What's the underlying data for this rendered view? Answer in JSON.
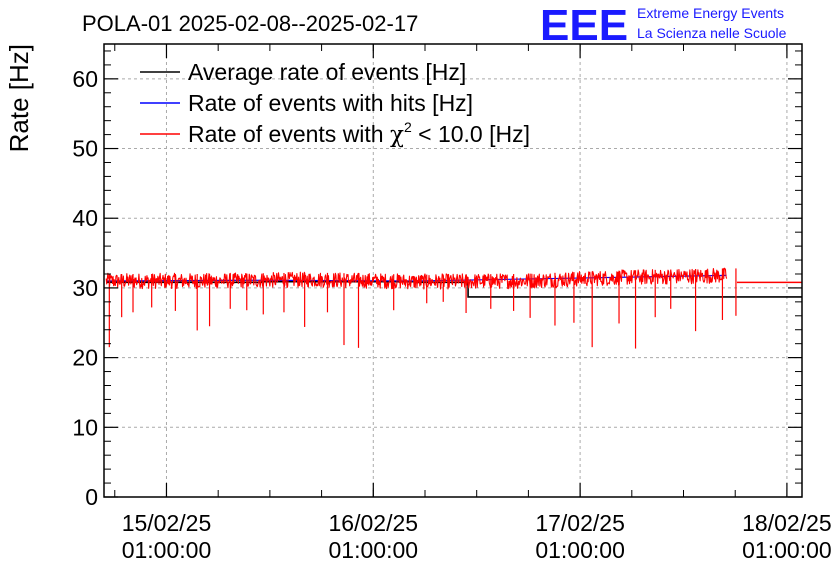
{
  "chart_data": {
    "type": "line",
    "title": "POLA-01 2025-02-08--2025-02-17",
    "ylabel": "Rate [Hz]",
    "xlabel": "",
    "ylim": [
      0,
      65
    ],
    "y_ticks": [
      0,
      10,
      20,
      30,
      40,
      50,
      60
    ],
    "x_range": [
      "2025-02-14 17:45",
      "2025-02-18 02:45"
    ],
    "x_ticks": [
      {
        "x": "2025-02-15 01:00",
        "date": "15/02/25",
        "time": "01:00:00"
      },
      {
        "x": "2025-02-16 01:00",
        "date": "16/02/25",
        "time": "01:00:00"
      },
      {
        "x": "2025-02-17 01:00",
        "date": "17/02/25",
        "time": "01:00:00"
      },
      {
        "x": "2025-02-18 01:00",
        "date": "18/02/25",
        "time": "01:00:00"
      }
    ],
    "grid": true,
    "legend_position": "top-left",
    "series": [
      {
        "name": "Average rate of events [Hz]",
        "color": "#000000",
        "type": "step",
        "points": [
          [
            "2025-02-14 18:00",
            30.8
          ],
          [
            "2025-02-15 12:00",
            30.9
          ],
          [
            "2025-02-16 06:00",
            30.8
          ],
          [
            "2025-02-16 12:00",
            28.7
          ],
          [
            "2025-02-18 02:45",
            28.7
          ]
        ]
      },
      {
        "name": "Rate of events with hits [Hz]",
        "color": "#0000ff",
        "type": "line",
        "points": [
          [
            "2025-02-14 18:00",
            31.0
          ],
          [
            "2025-02-15 12:00",
            31.1
          ],
          [
            "2025-02-16 06:00",
            31.0
          ],
          [
            "2025-02-17 00:00",
            31.4
          ],
          [
            "2025-02-17 18:00",
            31.8
          ]
        ]
      },
      {
        "name": "Rate of events with χ² < 10.0 [Hz]",
        "label_parts": [
          "Rate of events with ",
          "χ",
          "2",
          " < 10.0 [Hz]"
        ],
        "color": "#ff0000",
        "type": "line",
        "points": [
          [
            "2025-02-14 18:00",
            31.0
          ],
          [
            "2025-02-15 06:00",
            31.0
          ],
          [
            "2025-02-15 18:00",
            31.2
          ],
          [
            "2025-02-16 06:00",
            30.9
          ],
          [
            "2025-02-16 18:00",
            31.0
          ],
          [
            "2025-02-17 06:00",
            31.5
          ],
          [
            "2025-02-17 18:00",
            31.8
          ]
        ],
        "noise_band": [
          29.2,
          33.5
        ],
        "dips": [
          [
            "2025-02-14 18:22",
            21.5
          ],
          [
            "2025-02-14 19:48",
            25.8
          ],
          [
            "2025-02-14 21:07",
            26.5
          ],
          [
            "2025-02-14 23:17",
            27.2
          ],
          [
            "2025-02-15 02:02",
            26.7
          ],
          [
            "2025-02-15 04:34",
            23.9
          ],
          [
            "2025-02-15 06:00",
            24.5
          ],
          [
            "2025-02-15 08:24",
            27.0
          ],
          [
            "2025-02-15 10:19",
            26.8
          ],
          [
            "2025-02-15 12:14",
            26.2
          ],
          [
            "2025-02-15 14:38",
            26.5
          ],
          [
            "2025-02-15 17:02",
            24.4
          ],
          [
            "2025-02-15 19:41",
            26.5
          ],
          [
            "2025-02-15 21:36",
            21.8
          ],
          [
            "2025-02-15 23:17",
            21.4
          ],
          [
            "2025-02-16 03:22",
            26.8
          ],
          [
            "2025-02-16 07:12",
            27.8
          ],
          [
            "2025-02-16 09:07",
            28.0
          ],
          [
            "2025-02-16 11:46",
            26.4
          ],
          [
            "2025-02-16 14:38",
            27.0
          ],
          [
            "2025-02-16 17:17",
            26.7
          ],
          [
            "2025-02-16 19:12",
            25.7
          ],
          [
            "2025-02-16 22:05",
            24.6
          ],
          [
            "2025-02-17 00:17",
            25.0
          ],
          [
            "2025-02-17 02:24",
            21.5
          ],
          [
            "2025-02-17 05:31",
            24.9
          ],
          [
            "2025-02-17 07:26",
            21.3
          ],
          [
            "2025-02-17 09:43",
            25.8
          ],
          [
            "2025-02-17 11:31",
            27.0
          ],
          [
            "2025-02-17 14:24",
            23.8
          ],
          [
            "2025-02-17 17:31",
            25.4
          ],
          [
            "2025-02-17 19:05",
            26.0
          ]
        ],
        "steps": [
          [
            "2025-02-17 19:12",
            30.8
          ],
          [
            "2025-02-18 02:45",
            30.8
          ]
        ]
      }
    ]
  },
  "logo": {
    "mark": "EEE",
    "line1": "Extreme Energy Events",
    "line2": "La Scienza nelle Scuole",
    "color": "#1a1aff"
  }
}
